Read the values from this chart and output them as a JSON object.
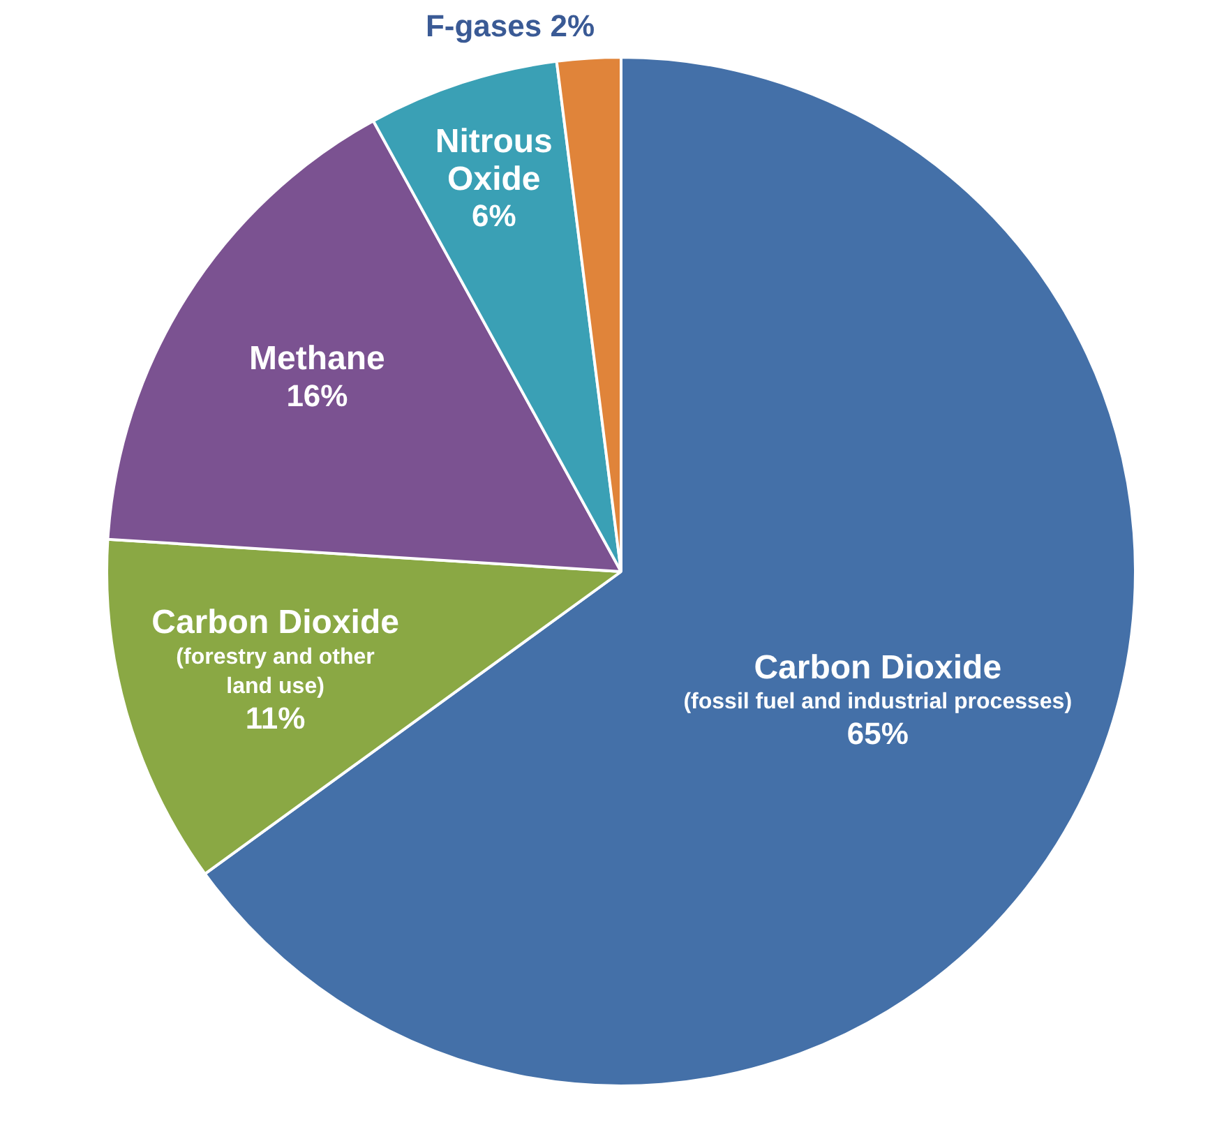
{
  "chart_data": {
    "type": "pie",
    "categories": [
      "Carbon Dioxide (fossil fuel and industrial processes)",
      "Carbon Dioxide (forestry and other land use)",
      "Methane",
      "Nitrous Oxide",
      "F-gases"
    ],
    "values": [
      65,
      11,
      16,
      6,
      2
    ],
    "colors": [
      "#4470a8",
      "#8aa844",
      "#7b5291",
      "#3aa0b5",
      "#e0843a"
    ],
    "value_labels": [
      "65%",
      "11%",
      "16%",
      "6%",
      "2%"
    ],
    "legend": false
  }
}
